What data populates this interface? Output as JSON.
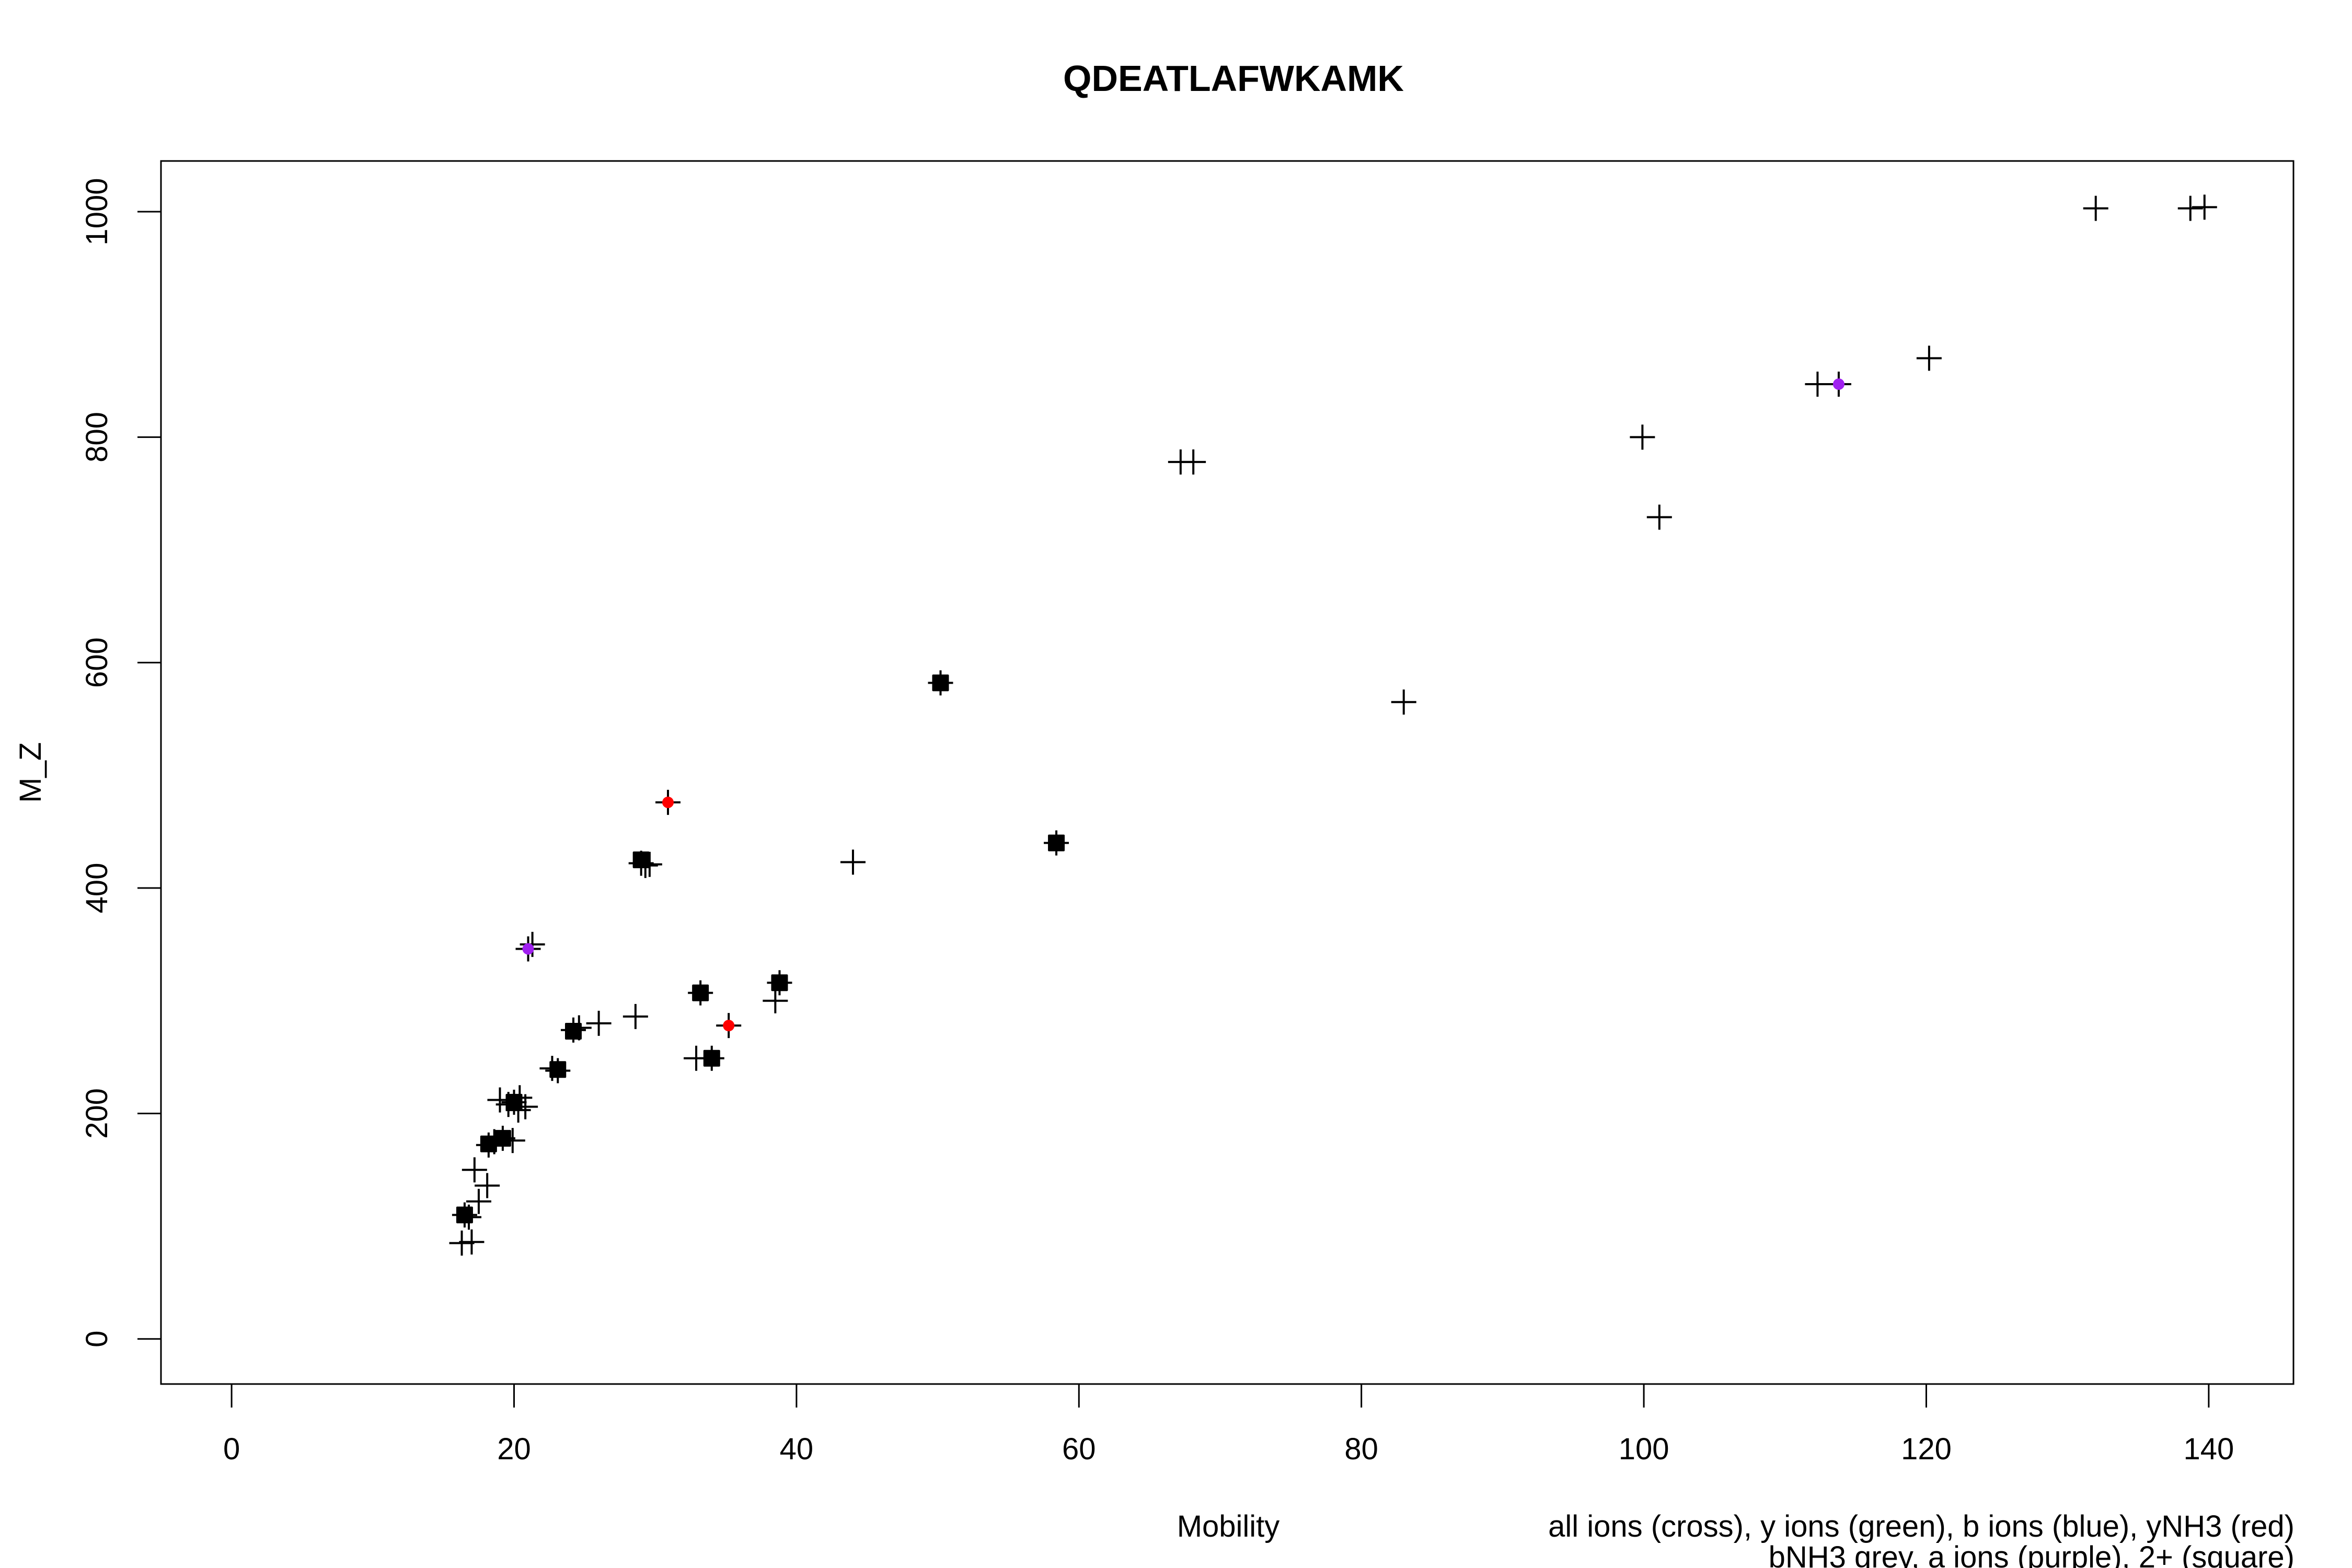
{
  "chart_data": {
    "type": "scatter",
    "title": "QDEATLAFWKAMK",
    "xlabel": "Mobility",
    "ylabel": "M_Z",
    "xlim": [
      -5,
      146
    ],
    "ylim": [
      -40,
      1045
    ],
    "xticks": [
      0,
      20,
      40,
      60,
      80,
      100,
      120,
      140
    ],
    "yticks": [
      0,
      200,
      400,
      600,
      800,
      1000
    ],
    "legend_text": [
      "all ions (cross), y ions (green), b ions (blue), yNH3 (red)",
      "bNH3 grey, a ions (purple), 2+ (square)"
    ],
    "grid": false,
    "series": [
      {
        "marker": "cross",
        "color": "#000000",
        "points": [
          [
            16.3,
            85
          ],
          [
            17.0,
            86
          ],
          [
            16.5,
            110
          ],
          [
            16.8,
            108
          ],
          [
            17.2,
            150
          ],
          [
            17.5,
            122
          ],
          [
            18.1,
            136
          ],
          [
            18.2,
            172
          ],
          [
            18.6,
            175
          ],
          [
            19.0,
            212
          ],
          [
            19.2,
            178
          ],
          [
            19.6,
            208
          ],
          [
            19.9,
            176
          ],
          [
            20.0,
            210
          ],
          [
            20.3,
            203
          ],
          [
            20.4,
            214
          ],
          [
            20.8,
            206
          ],
          [
            21.0,
            346
          ],
          [
            21.3,
            350
          ],
          [
            22.7,
            240
          ],
          [
            23.1,
            238
          ],
          [
            24.2,
            274
          ],
          [
            24.6,
            276
          ],
          [
            26.0,
            280
          ],
          [
            28.6,
            286
          ],
          [
            29.0,
            422
          ],
          [
            29.3,
            420
          ],
          [
            29.6,
            421
          ],
          [
            30.9,
            476
          ],
          [
            32.9,
            249
          ],
          [
            33.2,
            307
          ],
          [
            34.0,
            249
          ],
          [
            35.2,
            278
          ],
          [
            38.5,
            300
          ],
          [
            38.8,
            316
          ],
          [
            44.0,
            423
          ],
          [
            50.2,
            582
          ],
          [
            58.4,
            440
          ],
          [
            67.2,
            778
          ],
          [
            68.1,
            778
          ],
          [
            83.0,
            565
          ],
          [
            99.9,
            800
          ],
          [
            101.1,
            729
          ],
          [
            112.3,
            847
          ],
          [
            113.8,
            847
          ],
          [
            120.2,
            870
          ],
          [
            132.0,
            1003
          ],
          [
            138.7,
            1003
          ],
          [
            139.7,
            1004
          ]
        ]
      },
      {
        "marker": "square",
        "color": "#000000",
        "points": [
          [
            16.5,
            110
          ],
          [
            18.2,
            173
          ],
          [
            19.2,
            178
          ],
          [
            20.0,
            210
          ],
          [
            23.1,
            239
          ],
          [
            24.2,
            273
          ],
          [
            29.0,
            425
          ],
          [
            33.2,
            307
          ],
          [
            34.0,
            249
          ],
          [
            38.8,
            316
          ],
          [
            50.2,
            582
          ],
          [
            58.4,
            440
          ]
        ]
      },
      {
        "marker": "dot",
        "color": "#ff0000",
        "points": [
          [
            30.9,
            476
          ],
          [
            35.2,
            278
          ]
        ]
      },
      {
        "marker": "dot",
        "color": "#a020f0",
        "points": [
          [
            21.0,
            346
          ],
          [
            113.8,
            847
          ]
        ]
      }
    ]
  }
}
